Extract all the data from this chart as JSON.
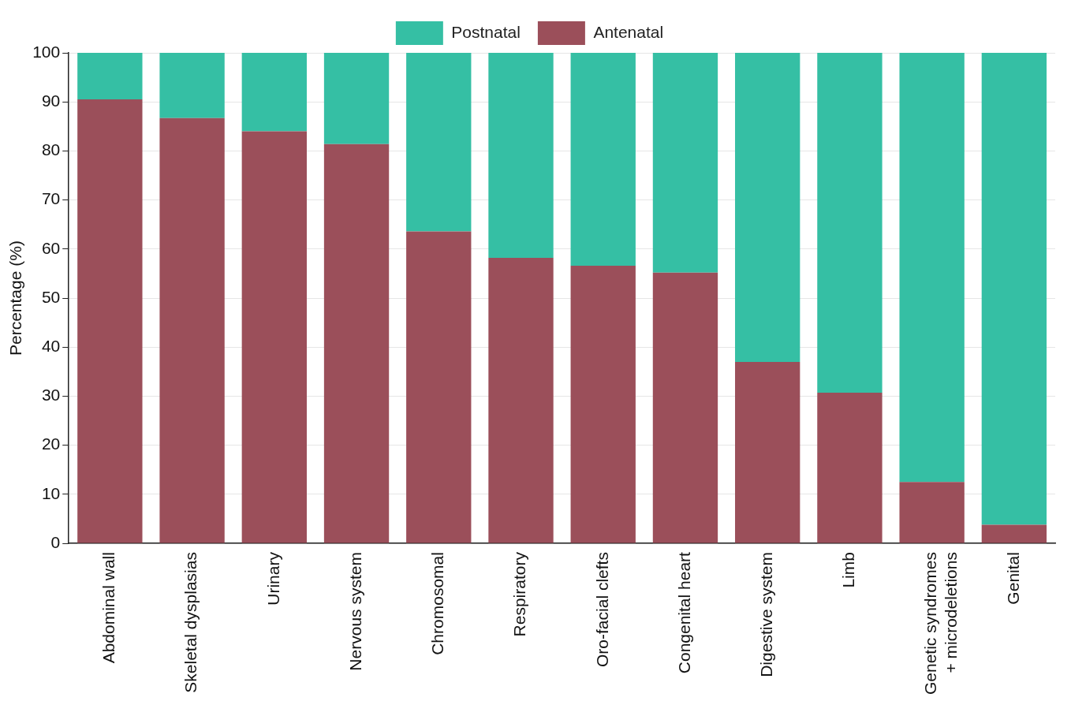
{
  "chart_data": {
    "type": "bar",
    "stacked": true,
    "ylabel": "Percentage (%)",
    "categories": [
      "Abdominal wall",
      "Skeletal dysplasias",
      "Urinary",
      "Nervous system",
      "Chromosomal",
      "Respiratory",
      "Oro-facial clefts",
      "Congenital heart",
      "Digestive system",
      "Limb",
      "Genetic syndromes\n+ microdeletions",
      "Genital"
    ],
    "series": [
      {
        "name": "Antenatal",
        "color": "#9b4f5a",
        "values": [
          90.5,
          86.7,
          84.0,
          81.4,
          63.6,
          58.2,
          56.6,
          55.2,
          37.0,
          30.7,
          12.5,
          3.8
        ]
      },
      {
        "name": "Postnatal",
        "color": "#35bfa4",
        "values": [
          9.5,
          13.3,
          16.0,
          18.6,
          36.4,
          41.8,
          43.4,
          44.8,
          63.0,
          69.3,
          87.5,
          96.2
        ]
      }
    ],
    "ylim": [
      0,
      100
    ],
    "yticks": [
      0,
      10,
      20,
      30,
      40,
      50,
      60,
      70,
      80,
      90,
      100
    ],
    "grid": "y",
    "legend": "top"
  }
}
